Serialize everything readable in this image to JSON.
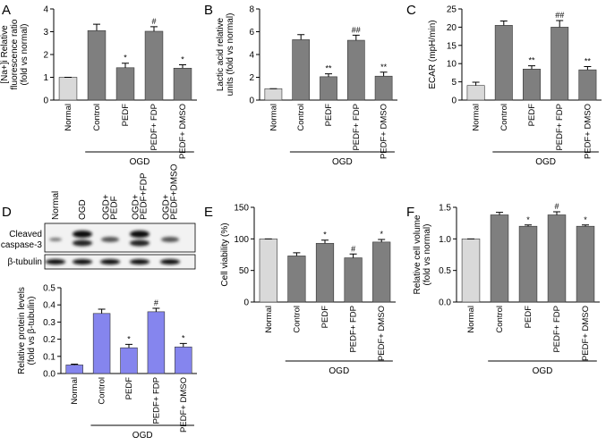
{
  "chart_data": [
    {
      "type": "bar",
      "panel": "A",
      "ylabel": [
        "[Na+]i Relative",
        "fluorescence ratio",
        "(fold vs normal)"
      ],
      "categories": [
        "Normal",
        "Control",
        "PEDF",
        "PEDF+ FDP",
        "PEDF+ DMSO"
      ],
      "values": [
        1.0,
        3.05,
        1.42,
        3.02,
        1.4
      ],
      "errors": [
        0,
        0.28,
        0.2,
        0.2,
        0.15
      ],
      "annotations": [
        null,
        null,
        "*",
        "#",
        "*"
      ],
      "group_label": "OGD",
      "colors": [
        "#d9d9d9",
        "#7f7f7f",
        "#7f7f7f",
        "#7f7f7f",
        "#7f7f7f"
      ],
      "ylim": [
        0,
        4
      ],
      "yticks": [
        0,
        1,
        2,
        3,
        4
      ]
    },
    {
      "type": "bar",
      "panel": "B",
      "ylabel": [
        "Lactic acid relative",
        "units (fold vs normal)"
      ],
      "categories": [
        "Normal",
        "Control",
        "PEDF",
        "PEDF+ FDP",
        "PEDF+ DMSO"
      ],
      "values": [
        1.0,
        5.3,
        2.05,
        5.25,
        2.1
      ],
      "errors": [
        0,
        0.45,
        0.25,
        0.45,
        0.35
      ],
      "annotations": [
        null,
        null,
        "**",
        "##",
        "**"
      ],
      "group_label": "OGD",
      "colors": [
        "#d9d9d9",
        "#7f7f7f",
        "#7f7f7f",
        "#7f7f7f",
        "#7f7f7f"
      ],
      "ylim": [
        0,
        8
      ],
      "yticks": [
        0,
        2,
        4,
        6,
        8
      ]
    },
    {
      "type": "bar",
      "panel": "C",
      "ylabel": [
        "ECAR (mpH/min)"
      ],
      "categories": [
        "Normal",
        "Control",
        "PEDF",
        "PEDF+ FDP",
        "PEDF+ DMSO"
      ],
      "values": [
        4,
        20.5,
        8.5,
        20,
        8.3
      ],
      "errors": [
        0.9,
        1.2,
        0.9,
        1.8,
        0.9
      ],
      "annotations": [
        null,
        null,
        "**",
        "##",
        "**"
      ],
      "group_label": "OGD",
      "colors": [
        "#d9d9d9",
        "#7f7f7f",
        "#7f7f7f",
        "#7f7f7f",
        "#7f7f7f"
      ],
      "ylim": [
        0,
        25
      ],
      "yticks": [
        0,
        5,
        10,
        15,
        20,
        25
      ]
    },
    {
      "type": "bar",
      "panel": "D",
      "ylabel": [
        "Relative protein levels",
        "(fold vs β-tubulin)"
      ],
      "categories": [
        "Normal",
        "Control",
        "PEDF",
        "PEDF+ FDP",
        "PEDF+ DMSO"
      ],
      "values": [
        0.05,
        0.35,
        0.15,
        0.36,
        0.155
      ],
      "errors": [
        0.005,
        0.025,
        0.02,
        0.02,
        0.02
      ],
      "annotations": [
        null,
        null,
        "*",
        "#",
        "*"
      ],
      "group_label": "OGD",
      "colors": [
        "#8585ee",
        "#8585ee",
        "#8585ee",
        "#8585ee",
        "#8585ee"
      ],
      "ylim": [
        0,
        0.5
      ],
      "yticks": [
        {
          "value": 0,
          "label": "0.0"
        },
        0.1,
        0.2,
        0.3,
        0.4,
        0.5
      ]
    },
    {
      "type": "bar",
      "panel": "E",
      "ylabel": [
        "Cell viability (%)"
      ],
      "categories": [
        "Normal",
        "Control",
        "PEDF",
        "PEDF+ FDP",
        "PEDF+ DMSO"
      ],
      "values": [
        100,
        73,
        93,
        70,
        95
      ],
      "errors": [
        0,
        5,
        5,
        6,
        4
      ],
      "annotations": [
        null,
        null,
        "*",
        "#",
        "*"
      ],
      "group_label": "OGD",
      "colors": [
        "#d9d9d9",
        "#7f7f7f",
        "#7f7f7f",
        "#7f7f7f",
        "#7f7f7f"
      ],
      "ylim": [
        0,
        150
      ],
      "yticks": [
        0,
        50,
        100,
        150
      ]
    },
    {
      "type": "bar",
      "panel": "F",
      "ylabel": [
        "Relative cell volume",
        "(fold vs normal)"
      ],
      "categories": [
        "Normal",
        "Control",
        "PEDF",
        "PEDF+ FDP",
        "PEDF+ DMSO"
      ],
      "values": [
        1.0,
        1.38,
        1.2,
        1.38,
        1.2
      ],
      "errors": [
        0,
        0.04,
        0.02,
        0.05,
        0.02
      ],
      "annotations": [
        null,
        null,
        "*",
        "#",
        "*"
      ],
      "group_label": "OGD",
      "colors": [
        "#d9d9d9",
        "#7f7f7f",
        "#7f7f7f",
        "#7f7f7f",
        "#7f7f7f"
      ],
      "ylim": [
        0,
        1.5
      ],
      "yticks": [
        {
          "value": 0,
          "label": "0.0"
        },
        0.5,
        {
          "value": 1,
          "label": "1.0"
        },
        1.5
      ]
    }
  ],
  "blot": {
    "lane_labels": [
      [
        "Normal"
      ],
      [
        "OGD"
      ],
      [
        "OGD+",
        "PEDF"
      ],
      [
        "OGD+",
        "PEDF+FDP"
      ],
      [
        "OGD+",
        "PEDF+DMSO"
      ]
    ],
    "band_labels": [
      "Cleaved",
      "caspase-3",
      "β-tubulin"
    ]
  }
}
